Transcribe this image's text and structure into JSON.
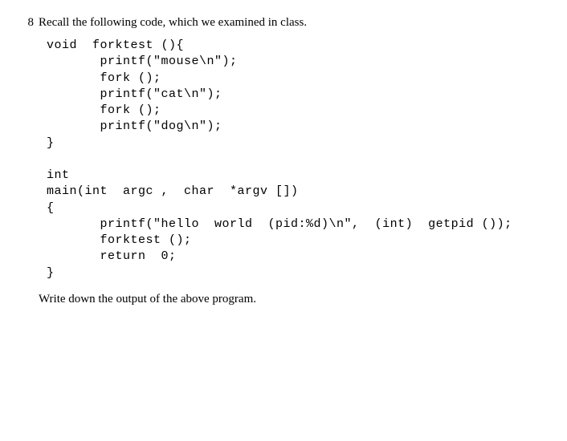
{
  "question": {
    "number": "8",
    "intro_text": "Recall the following code, which we examined in class.",
    "closing_text": "Write down the output of the above program.",
    "code": "void  forktest (){\n       printf(\"mouse\\n\");\n       fork ();\n       printf(\"cat\\n\");\n       fork ();\n       printf(\"dog\\n\");\n}\n\nint\nmain(int  argc ,  char  *argv [])\n{\n       printf(\"hello  world  (pid:%d)\\n\",  (int)  getpid ());\n       forktest ();\n       return  0;\n}",
    "font": {
      "body_family": "Times New Roman",
      "code_family": "Courier New",
      "body_size_pt": 11,
      "code_size_pt": 11,
      "text_color": "#000000",
      "background_color": "#ffffff"
    }
  }
}
